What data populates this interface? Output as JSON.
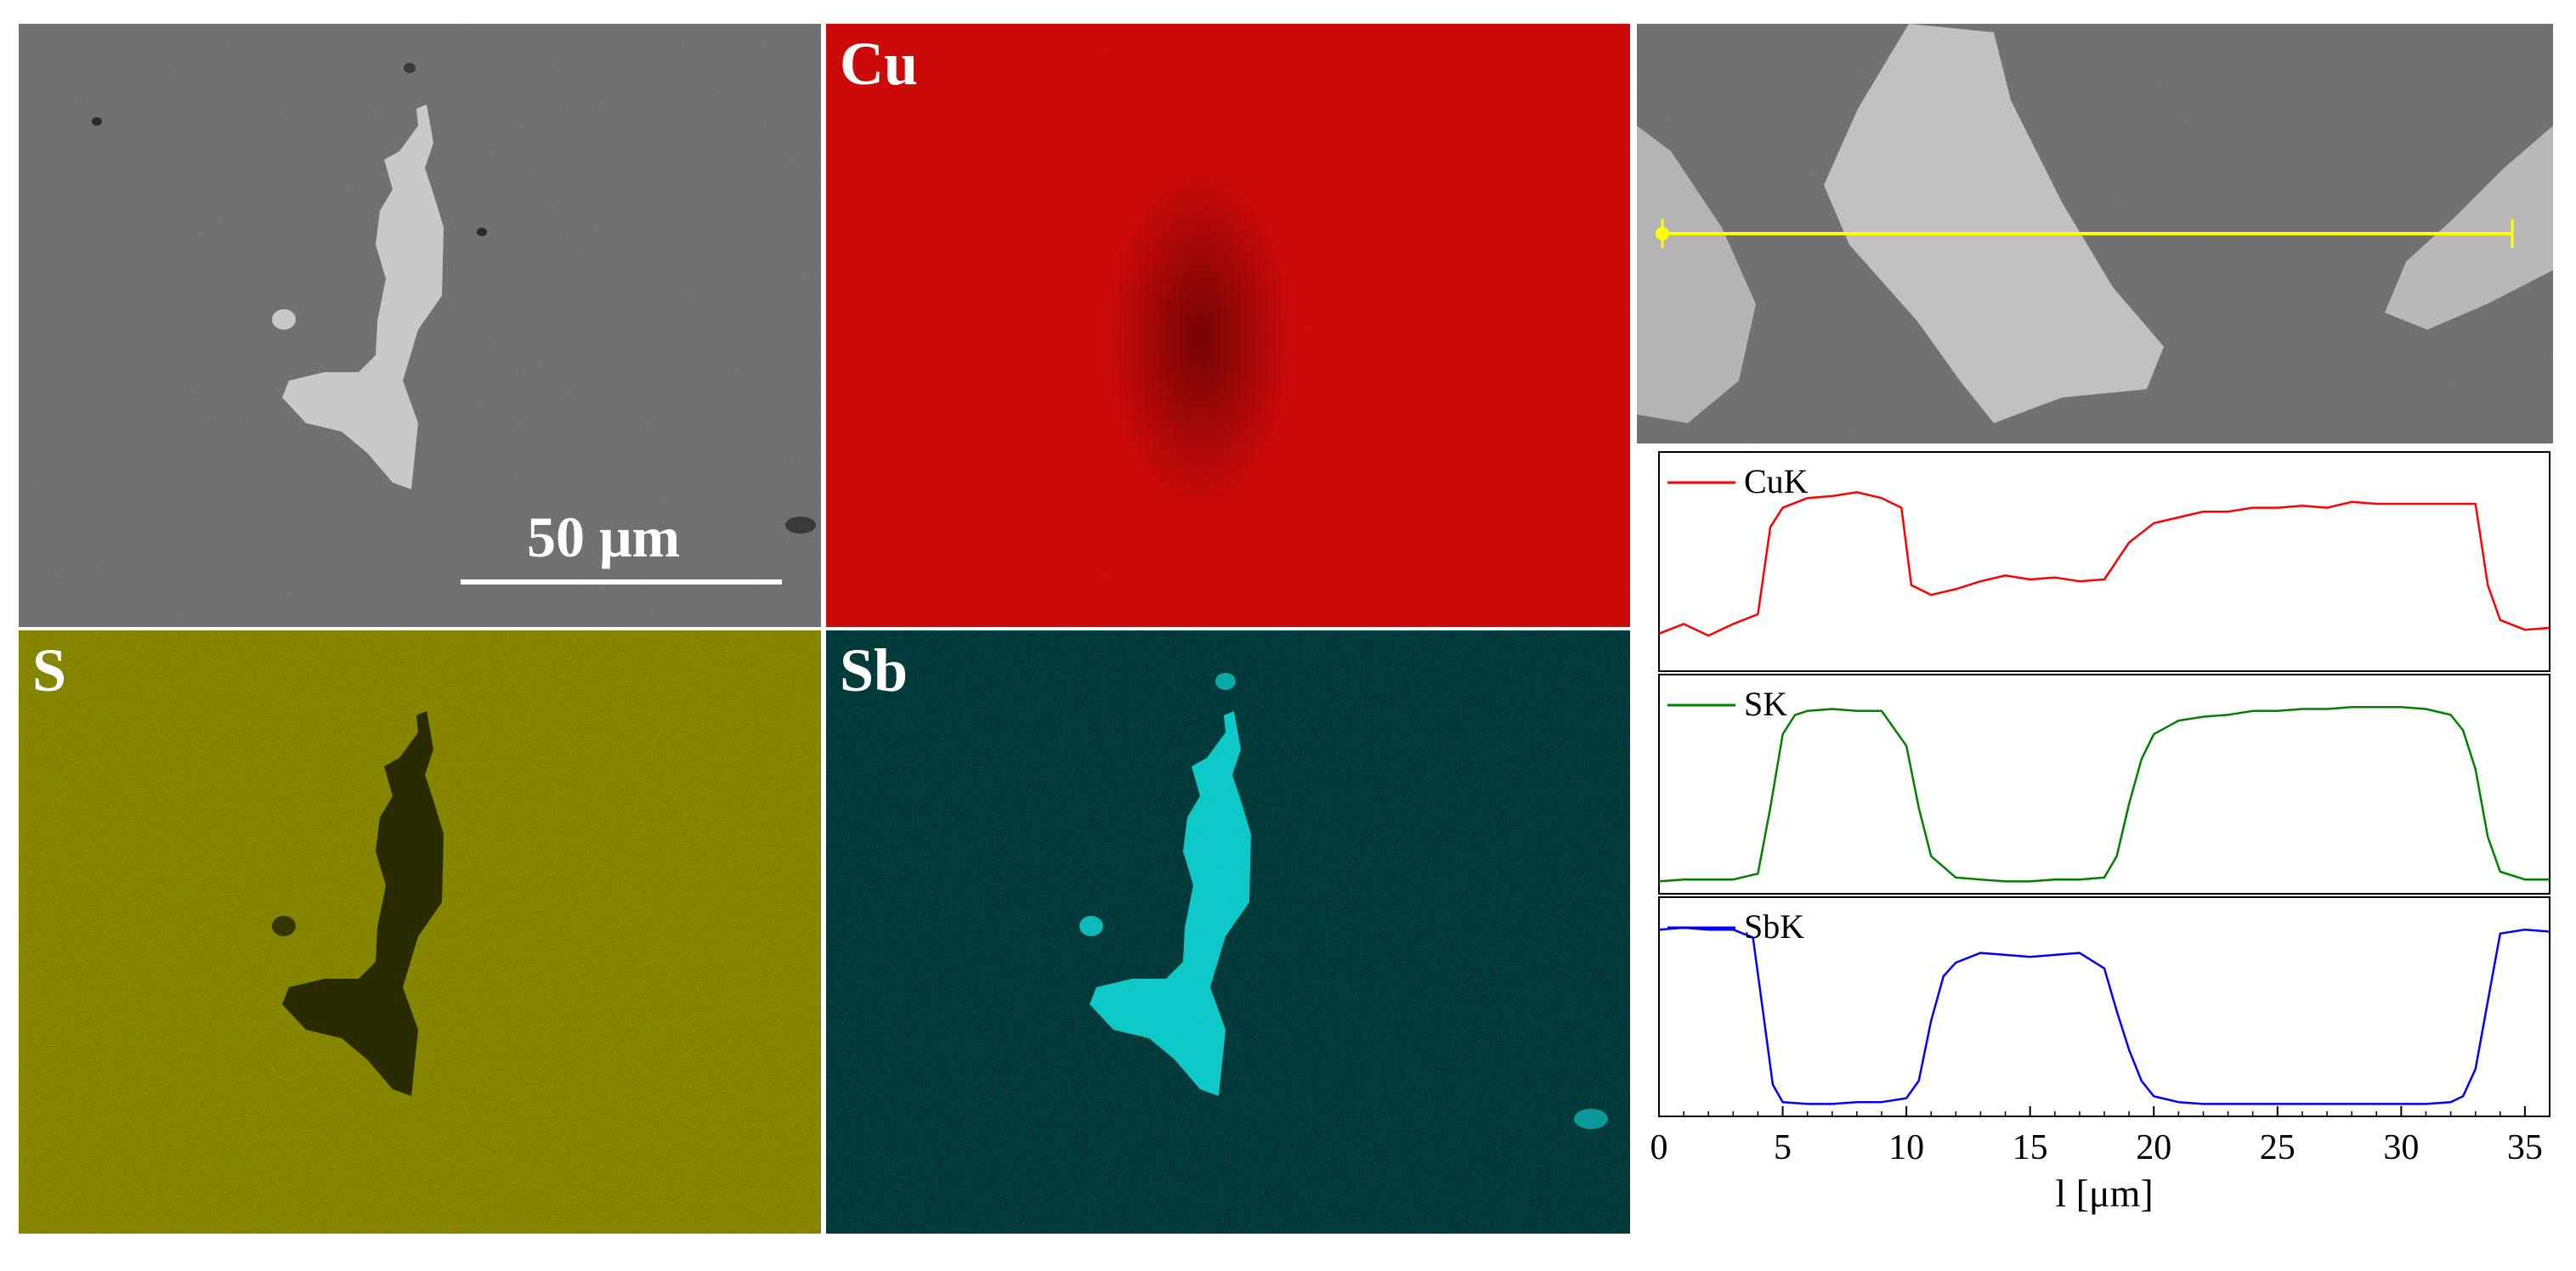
{
  "maps": {
    "sem_scale_label": "50 μm",
    "cu_label": "Cu",
    "s_label": "S",
    "sb_label": "Sb"
  },
  "colors": {
    "sem_background": "#6a6a6a",
    "sem_phase": "#c8c8c8",
    "cu_map": "#d01010",
    "s_map": "#8a8a00",
    "sb_map": "#10d8d8",
    "line_scan": "#ffff00",
    "cuk_line": "#ff0000",
    "sk_line": "#008000",
    "sbk_line": "#0000ff"
  },
  "chart_data": {
    "type": "line",
    "title": "",
    "xlabel": "l [μm]",
    "xlim": [
      0,
      36
    ],
    "xticks": [
      0,
      5,
      10,
      15,
      20,
      25,
      30,
      35
    ],
    "grid": false,
    "legend_placement": "top-left",
    "series": [
      {
        "name": "CuK",
        "x": [
          0,
          1,
          2,
          3,
          4,
          4.5,
          5,
          6,
          7,
          8,
          9,
          9.8,
          10.2,
          11,
          12,
          13,
          14,
          15,
          16,
          17,
          18,
          19,
          20,
          21,
          22,
          23,
          24,
          25,
          26,
          27,
          28,
          29,
          30,
          31,
          32,
          33,
          33.5,
          34,
          35,
          36
        ],
        "values": [
          0.15,
          0.2,
          0.14,
          0.2,
          0.25,
          0.7,
          0.8,
          0.85,
          0.86,
          0.88,
          0.85,
          0.8,
          0.4,
          0.35,
          0.38,
          0.42,
          0.45,
          0.43,
          0.44,
          0.42,
          0.43,
          0.62,
          0.72,
          0.75,
          0.78,
          0.78,
          0.8,
          0.8,
          0.81,
          0.8,
          0.83,
          0.82,
          0.82,
          0.82,
          0.82,
          0.82,
          0.4,
          0.22,
          0.17,
          0.18
        ]
      },
      {
        "name": "SK",
        "x": [
          0,
          1,
          2,
          3,
          4,
          4.5,
          5,
          5.5,
          6,
          7,
          8,
          9,
          10,
          10.5,
          11,
          12,
          13,
          14,
          15,
          16,
          17,
          18,
          18.5,
          19,
          19.5,
          20,
          21,
          22,
          23,
          24,
          25,
          26,
          27,
          28,
          29,
          30,
          31,
          32,
          32.5,
          33,
          33.5,
          34,
          35,
          36
        ],
        "values": [
          0.02,
          0.03,
          0.03,
          0.03,
          0.06,
          0.4,
          0.78,
          0.88,
          0.9,
          0.91,
          0.9,
          0.9,
          0.72,
          0.4,
          0.15,
          0.04,
          0.03,
          0.02,
          0.02,
          0.03,
          0.03,
          0.04,
          0.15,
          0.42,
          0.65,
          0.78,
          0.85,
          0.87,
          0.88,
          0.9,
          0.9,
          0.91,
          0.91,
          0.92,
          0.92,
          0.92,
          0.91,
          0.88,
          0.8,
          0.6,
          0.25,
          0.07,
          0.03,
          0.03
        ]
      },
      {
        "name": "SbK",
        "x": [
          0,
          1,
          2,
          3,
          3.8,
          4.2,
          4.6,
          5,
          6,
          7,
          8,
          9,
          10,
          10.5,
          11,
          11.5,
          12,
          13,
          14,
          15,
          16,
          17,
          18,
          18.5,
          19,
          19.5,
          20,
          21,
          22,
          23,
          24,
          25,
          26,
          27,
          28,
          29,
          30,
          31,
          32,
          32.5,
          33,
          33.5,
          34,
          35,
          36
        ],
        "values": [
          0.92,
          0.93,
          0.92,
          0.92,
          0.88,
          0.5,
          0.12,
          0.03,
          0.02,
          0.02,
          0.03,
          0.03,
          0.05,
          0.14,
          0.45,
          0.68,
          0.75,
          0.8,
          0.79,
          0.78,
          0.79,
          0.8,
          0.72,
          0.5,
          0.3,
          0.14,
          0.06,
          0.03,
          0.02,
          0.02,
          0.02,
          0.02,
          0.02,
          0.02,
          0.02,
          0.02,
          0.02,
          0.02,
          0.03,
          0.06,
          0.2,
          0.55,
          0.9,
          0.92,
          0.91
        ]
      }
    ]
  }
}
